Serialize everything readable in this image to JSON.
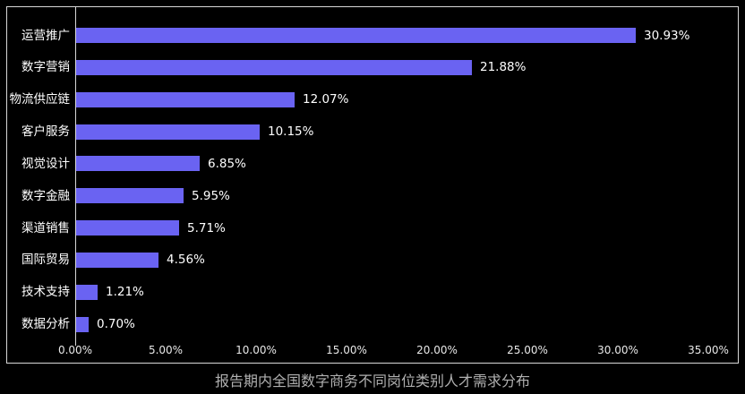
{
  "chart_data": {
    "type": "bar",
    "orientation": "horizontal",
    "title": "报告期内全国数字商务不同岗位类别人才需求分布",
    "xlabel": "",
    "ylabel": "",
    "categories": [
      "运营推广",
      "数字营销",
      "物流供应链",
      "客户服务",
      "视觉设计",
      "数字金融",
      "渠道销售",
      "国际贸易",
      "技术支持",
      "数据分析"
    ],
    "values": [
      30.93,
      21.88,
      12.07,
      10.15,
      6.85,
      5.95,
      5.71,
      4.56,
      1.21,
      0.7
    ],
    "value_labels": [
      "30.93%",
      "21.88%",
      "12.07%",
      "10.15%",
      "6.85%",
      "5.95%",
      "5.71%",
      "4.56%",
      "1.21%",
      "0.70%"
    ],
    "xlim": [
      0,
      35
    ],
    "x_ticks": [
      "0.00%",
      "5.00%",
      "10.00%",
      "15.00%",
      "20.00%",
      "25.00%",
      "30.00%",
      "35.00%"
    ],
    "x_tick_values": [
      0,
      5,
      10,
      15,
      20,
      25,
      30,
      35
    ],
    "grid": false,
    "legend": false
  },
  "colors": {
    "background": "#000000",
    "bar": "#6a63f2",
    "frame": "#d8d8d8",
    "category_text": "#ffffff",
    "value_text": "#ffffff",
    "tick_text": "#e8e8e8",
    "title_text": "#b0b0b0"
  }
}
